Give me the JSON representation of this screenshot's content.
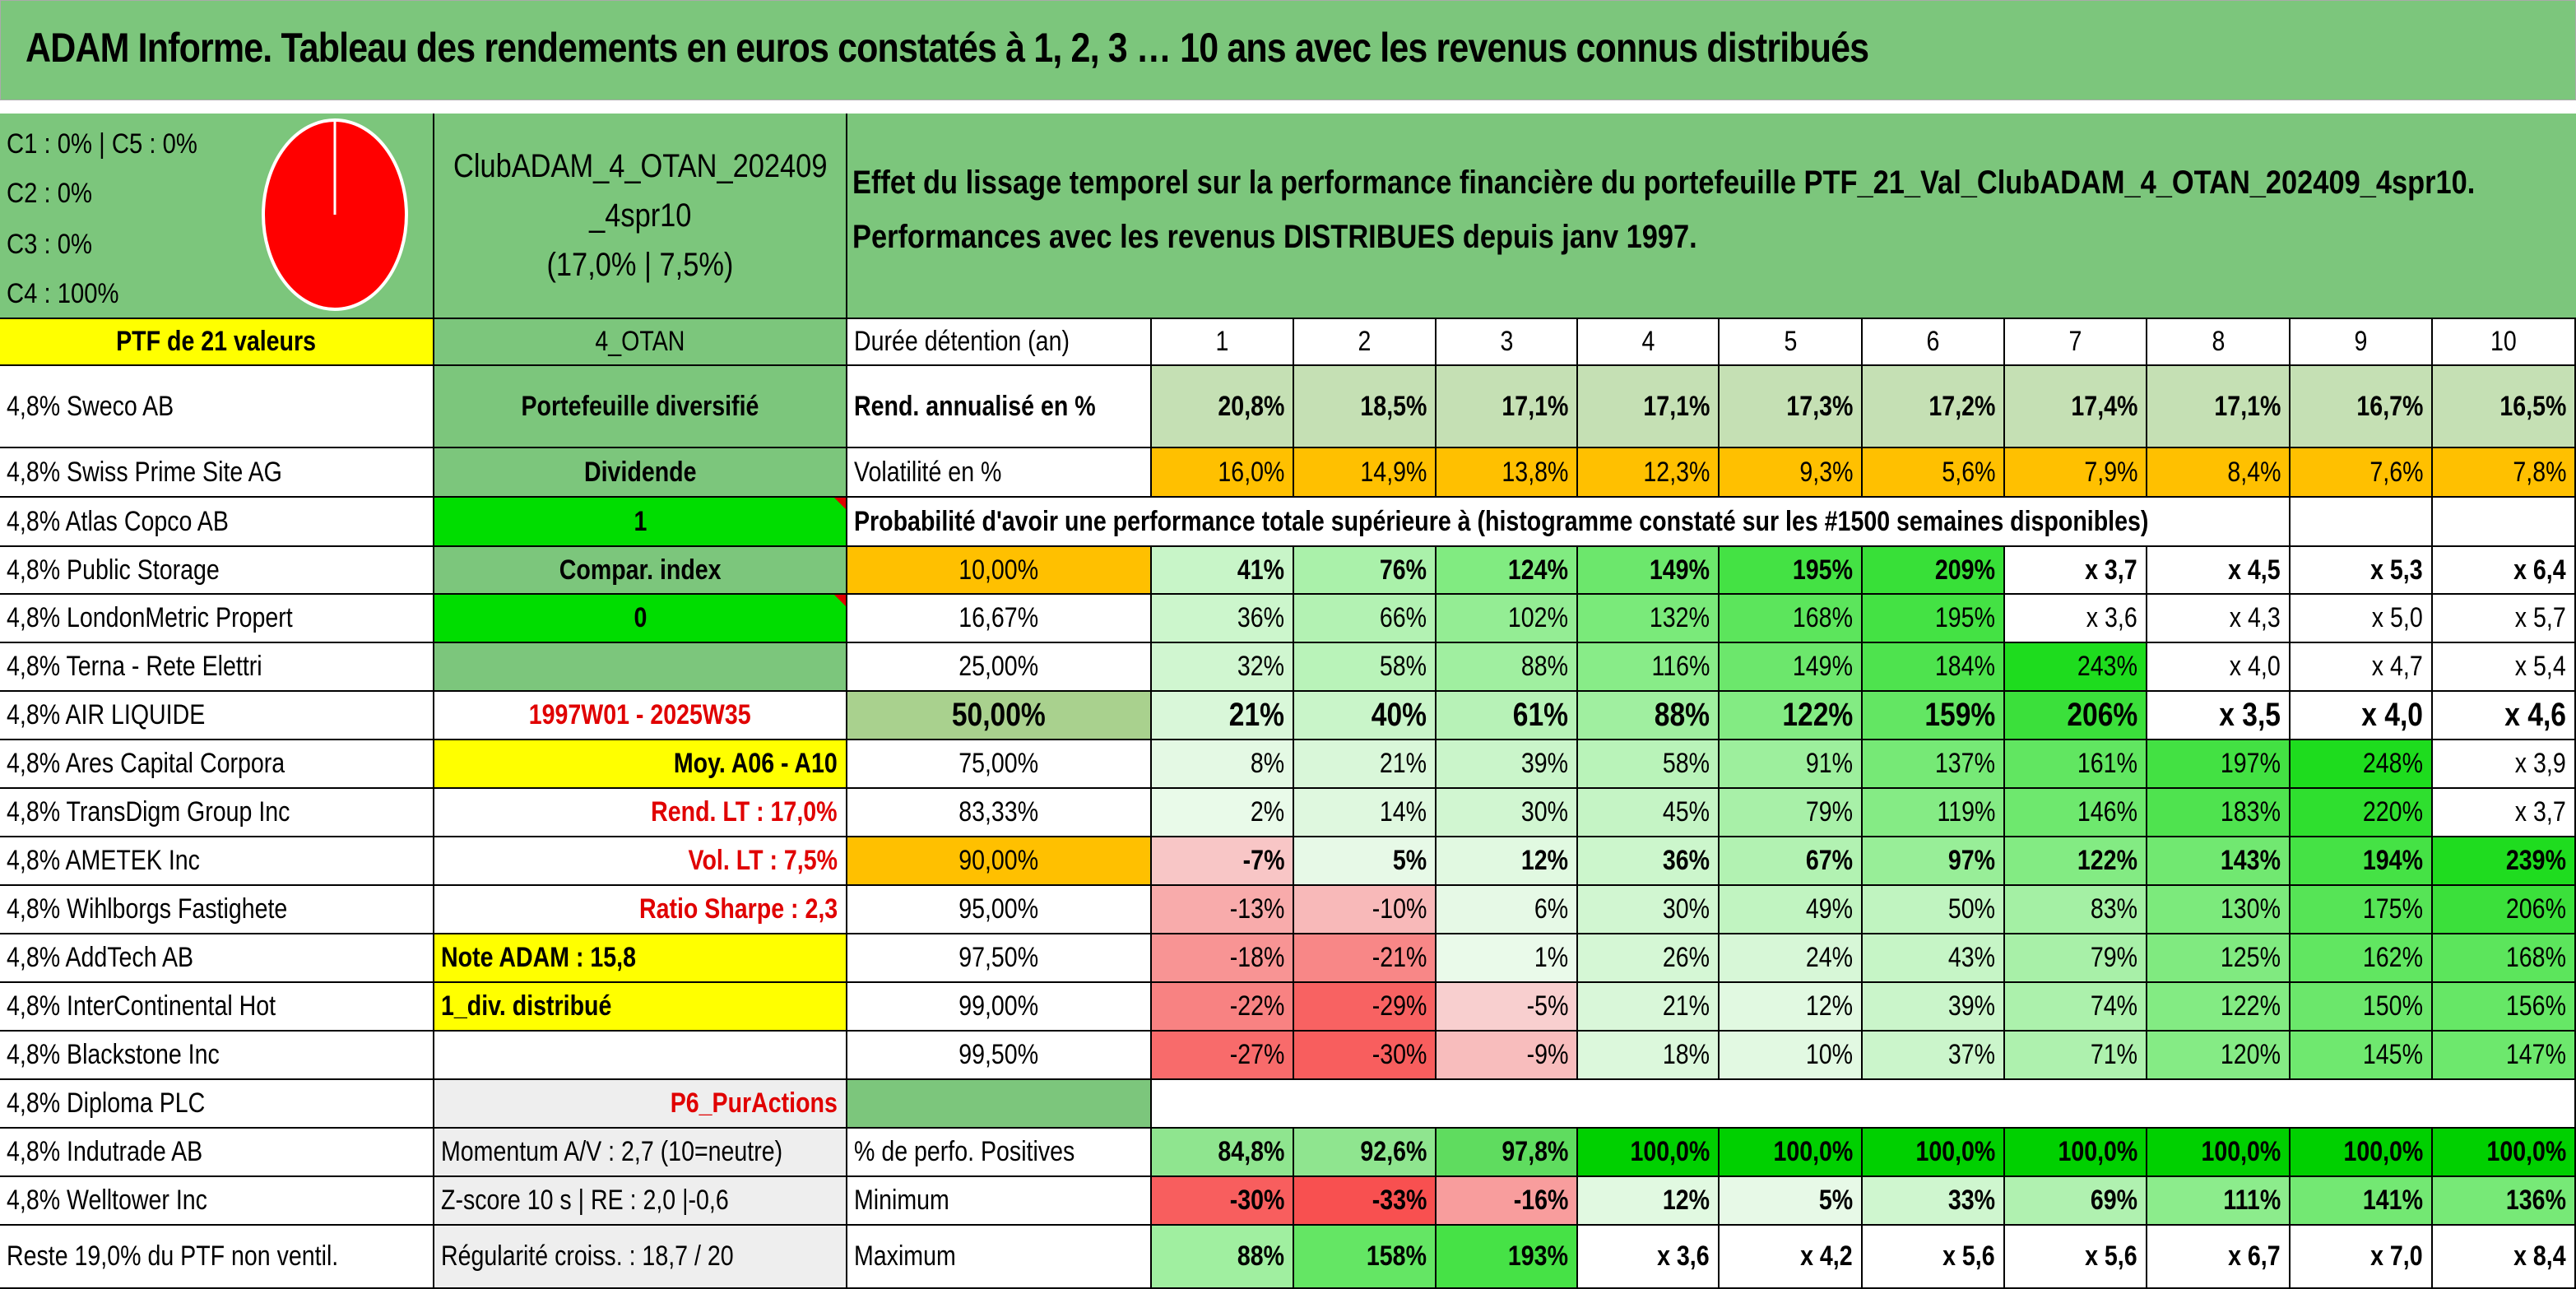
{
  "title": "ADAM Informe. Tableau des rendements en euros constatés à 1, 2, 3 … 10 ans avec les revenus connus distribués",
  "pie": {
    "lines": [
      "C1 : 0% | C5 : 0%",
      "C2 : 0%",
      "C3 : 0%",
      "C4 : 100%"
    ],
    "slices": [
      {
        "label": "C1",
        "value": 0
      },
      {
        "label": "C2",
        "value": 0
      },
      {
        "label": "C3",
        "value": 0
      },
      {
        "label": "C4",
        "value": 100
      },
      {
        "label": "C5",
        "value": 0
      }
    ],
    "color": "#ff0000"
  },
  "club": {
    "line1": "ClubADAM_4_OTAN_202409",
    "line2": "_4spr10",
    "line3": "(17,0% | 7,5%)"
  },
  "effet": {
    "line1": "Effet du lissage temporel sur la performance financière du portefeuille PTF_21_Val_ClubADAM_4_OTAN_202409_4spr10.",
    "line2": "Performances avec les revenus DISTRIBUES depuis janv 1997."
  },
  "ptf_header": "PTF de 21 valeurs",
  "otan_label": "4_OTAN",
  "holdings": [
    "4,8% Sweco AB",
    "4,8% Swiss Prime Site AG",
    "4,8% Atlas Copco AB",
    "4,8% Public Storage",
    "4,8% LondonMetric Propert",
    "4,8% Terna - Rete Elettri",
    "4,8% AIR LIQUIDE",
    "4,8% Ares Capital Corpora",
    "4,8% TransDigm Group Inc",
    "4,8% AMETEK Inc",
    "4,8% Wihlborgs Fastighete",
    "4,8% AddTech AB",
    "4,8% InterContinental Hot",
    "4,8% Blackstone Inc",
    "4,8% Diploma PLC",
    "4,8% Indutrade AB",
    "4,8% Welltower Inc",
    "Reste 19,0% du PTF non ventil."
  ],
  "info": [
    "Portefeuille diversifié",
    "Dividende",
    "1",
    "Compar. index",
    "0",
    "",
    "1997W01 - 2025W35",
    "Moy. A06 - A10",
    "Rend. LT : 17,0%",
    "Vol. LT : 7,5%",
    "Ratio Sharpe : 2,3",
    "Note ADAM : 15,8",
    "1_div. distribué",
    "",
    "P6_PurActions",
    "Momentum A/V : 2,7 (10=neutre)",
    "Z-score 10 s | RE : 2,0 |-0,6",
    "Régularité croiss. : 18,7 / 20"
  ],
  "table": {
    "duration_label": "Durée détention (an)",
    "years": [
      "1",
      "2",
      "3",
      "4",
      "5",
      "6",
      "7",
      "8",
      "9",
      "10"
    ],
    "rend_label": "Rend. annualisé en %",
    "rend": [
      "20,8%",
      "18,5%",
      "17,1%",
      "17,1%",
      "17,3%",
      "17,2%",
      "17,4%",
      "17,1%",
      "16,7%",
      "16,5%"
    ],
    "vol_label": "Volatilité en %",
    "vol": [
      "16,0%",
      "14,9%",
      "13,8%",
      "12,3%",
      "9,3%",
      "5,6%",
      "7,9%",
      "8,4%",
      "7,6%",
      "7,8%"
    ],
    "proba_label": "Probabilité d'avoir une performance totale supérieure à (histogramme constaté sur les #1500 semaines disponibles)",
    "proba_rows": [
      {
        "p": "10,00%",
        "v": [
          "41%",
          "76%",
          "124%",
          "149%",
          "195%",
          "209%",
          "x 3,7",
          "x 4,5",
          "x 5,3",
          "x 6,4"
        ]
      },
      {
        "p": "16,67%",
        "v": [
          "36%",
          "66%",
          "102%",
          "132%",
          "168%",
          "195%",
          "x 3,6",
          "x 4,3",
          "x 5,0",
          "x 5,7"
        ]
      },
      {
        "p": "25,00%",
        "v": [
          "32%",
          "58%",
          "88%",
          "116%",
          "149%",
          "184%",
          "243%",
          "x 4,0",
          "x 4,7",
          "x 5,4"
        ]
      },
      {
        "p": "50,00%",
        "v": [
          "21%",
          "40%",
          "61%",
          "88%",
          "122%",
          "159%",
          "206%",
          "x 3,5",
          "x 4,0",
          "x 4,6"
        ]
      },
      {
        "p": "75,00%",
        "v": [
          "8%",
          "21%",
          "39%",
          "58%",
          "91%",
          "137%",
          "161%",
          "197%",
          "248%",
          "x 3,9"
        ]
      },
      {
        "p": "83,33%",
        "v": [
          "2%",
          "14%",
          "30%",
          "45%",
          "79%",
          "119%",
          "146%",
          "183%",
          "220%",
          "x 3,7"
        ]
      },
      {
        "p": "90,00%",
        "v": [
          "-7%",
          "5%",
          "12%",
          "36%",
          "67%",
          "97%",
          "122%",
          "143%",
          "194%",
          "239%"
        ]
      },
      {
        "p": "95,00%",
        "v": [
          "-13%",
          "-10%",
          "6%",
          "30%",
          "49%",
          "50%",
          "83%",
          "130%",
          "175%",
          "206%"
        ]
      },
      {
        "p": "97,50%",
        "v": [
          "-18%",
          "-21%",
          "1%",
          "26%",
          "24%",
          "43%",
          "79%",
          "125%",
          "162%",
          "168%"
        ]
      },
      {
        "p": "99,00%",
        "v": [
          "-22%",
          "-29%",
          "-5%",
          "21%",
          "12%",
          "39%",
          "74%",
          "122%",
          "150%",
          "156%"
        ]
      },
      {
        "p": "99,50%",
        "v": [
          "-27%",
          "-30%",
          "-9%",
          "18%",
          "10%",
          "37%",
          "71%",
          "120%",
          "145%",
          "147%"
        ]
      }
    ],
    "pos_label": "% de perfo. Positives",
    "pos": [
      "84,8%",
      "92,6%",
      "97,8%",
      "100,0%",
      "100,0%",
      "100,0%",
      "100,0%",
      "100,0%",
      "100,0%",
      "100,0%"
    ],
    "min_label": "Minimum",
    "min": [
      "-30%",
      "-33%",
      "-16%",
      "12%",
      "5%",
      "33%",
      "69%",
      "111%",
      "141%",
      "136%"
    ],
    "max_label": "Maximum",
    "max": [
      "88%",
      "158%",
      "193%",
      "x 3,6",
      "x 4,2",
      "x 5,6",
      "x 5,6",
      "x 6,7",
      "x 7,0",
      "x 8,4"
    ]
  }
}
